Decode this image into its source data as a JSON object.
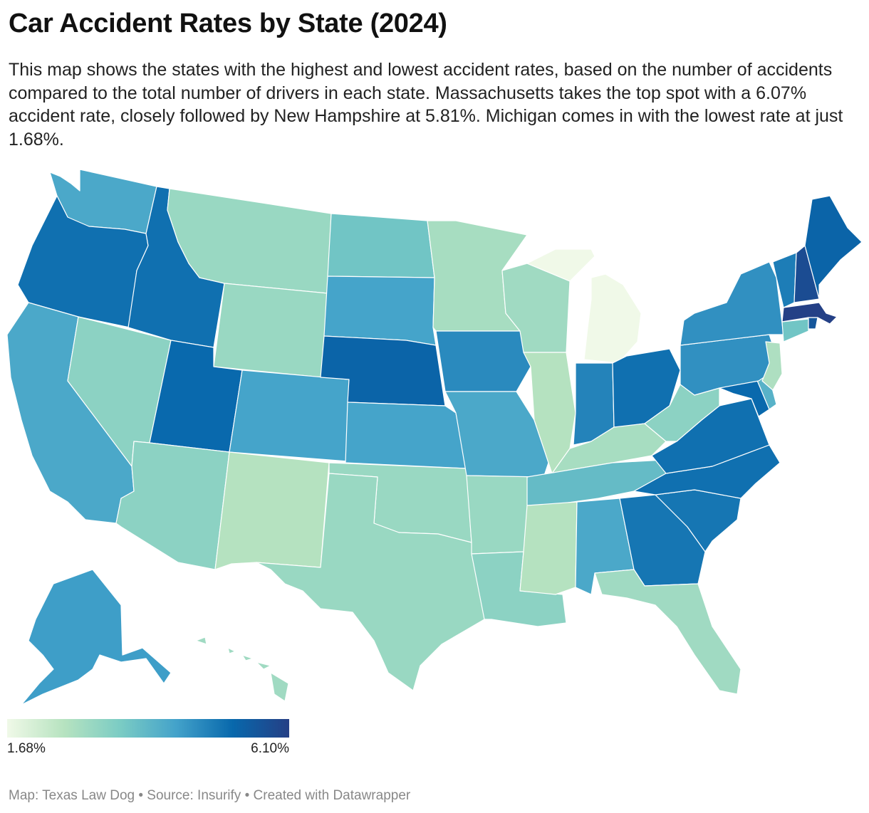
{
  "title": "Car Accident Rates by State (2024)",
  "description": "This map shows the states with the highest and lowest accident rates, based on the number of accidents compared to the total number of drivers in each state. Massachusetts takes the top spot with a 6.07% accident rate, closely followed by New Hampshire at 5.81%. Michigan comes in with the lowest rate at just 1.68%.",
  "legend": {
    "min_label": "1.68%",
    "max_label": "6.10%",
    "min_value": 1.68,
    "max_value": 6.1,
    "color_stops": [
      "#f0f9e8",
      "#b7e3c0",
      "#7bccc4",
      "#43a2ca",
      "#0868ac",
      "#253f85"
    ]
  },
  "footer": {
    "map_credit": "Map: Texas Law Dog",
    "source": "Source: Insurify",
    "tool": "Created with Datawrapper",
    "separator": " • "
  },
  "states": {
    "WA": 4.2,
    "OR": 5.1,
    "CA": 4.2,
    "ID": 5.1,
    "NV": 3.2,
    "MT": 3.0,
    "WY": 3.0,
    "UT": 5.2,
    "AZ": 3.2,
    "CO": 4.3,
    "NM": 2.6,
    "ND": 3.6,
    "SD": 4.3,
    "NE": 5.3,
    "KS": 4.3,
    "OK": 3.0,
    "TX": 3.0,
    "MN": 2.8,
    "IA": 4.7,
    "MO": 4.2,
    "AR": 3.0,
    "LA": 3.2,
    "WI": 2.9,
    "IL": 2.6,
    "MI": 1.68,
    "IN": 4.8,
    "OH": 5.1,
    "KY": 2.8,
    "TN": 3.8,
    "MS": 2.6,
    "AL": 4.2,
    "WV": 3.2,
    "VA": 5.1,
    "NC": 5.1,
    "SC": 5.0,
    "GA": 5.0,
    "FL": 2.9,
    "PA": 4.6,
    "NY": 4.6,
    "NJ": 2.7,
    "DE": 4.0,
    "MD": 5.2,
    "CT": 3.6,
    "RI": 5.6,
    "MA": 6.07,
    "VT": 4.9,
    "NH": 5.81,
    "ME": 5.3,
    "AK": 4.4,
    "HI": 2.9
  }
}
